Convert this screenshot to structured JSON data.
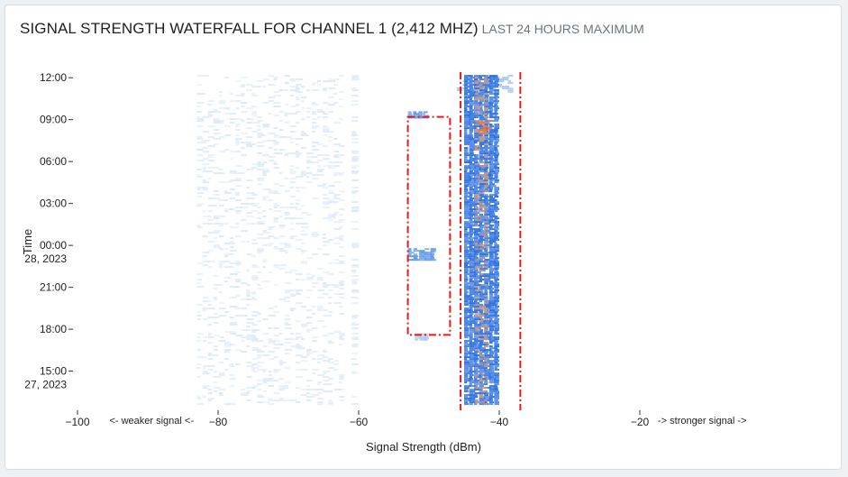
{
  "header": {
    "title": "SIGNAL STRENGTH WATERFALL FOR CHANNEL 1 (2,412 MHZ)",
    "subtitle": "LAST 24 HOURS MAXIMUM"
  },
  "chart_data": {
    "type": "heatmap",
    "title": "SIGNAL STRENGTH WATERFALL FOR CHANNEL 1 (2,412 MHZ)",
    "subtitle": "LAST 24 HOURS MAXIMUM",
    "xlabel": "Signal Strength (dBm)",
    "ylabel": "Time",
    "xlim": [
      -100,
      -20
    ],
    "x_ticks": [
      {
        "value": -100,
        "label": "−100"
      },
      {
        "value": -80,
        "label": "−80"
      },
      {
        "value": -60,
        "label": "−60"
      },
      {
        "value": -40,
        "label": "−40"
      },
      {
        "value": -20,
        "label": "−20"
      }
    ],
    "y_ticks": [
      {
        "hour": 36,
        "label": "12:00",
        "sublabel": ""
      },
      {
        "hour": 33,
        "label": "09:00",
        "sublabel": ""
      },
      {
        "hour": 30,
        "label": "06:00",
        "sublabel": ""
      },
      {
        "hour": 27,
        "label": "03:00",
        "sublabel": ""
      },
      {
        "hour": 24,
        "label": "00:00",
        "sublabel": "28, 2023"
      },
      {
        "hour": 21,
        "label": "21:00",
        "sublabel": ""
      },
      {
        "hour": 18,
        "label": "18:00",
        "sublabel": ""
      },
      {
        "hour": 15,
        "label": "15:00",
        "sublabel": "27, 2023"
      }
    ],
    "ylim_hours": [
      12.2,
      36.4
    ],
    "annotations": {
      "weaker": "<- weaker signal <-",
      "stronger": "-> stronger signal ->"
    },
    "colors": {
      "faint": "#dce8fa",
      "light": "#a9c7f2",
      "medium": "#5f97ec",
      "strong": "#2a6fe3",
      "peak": "#c79b82",
      "hot": "#f07a40",
      "marker": "#e31b1b"
    },
    "marker_lines_dbm": [
      -45.5,
      -37
    ],
    "highlight_region": {
      "x_dbm": [
        -53,
        -47
      ],
      "hours": [
        17.6,
        33.2
      ]
    },
    "bands": [
      {
        "dbm": [
          -83,
          -62
        ],
        "hours": [
          12.6,
          36.2
        ],
        "level": "faint",
        "density": 0.22
      },
      {
        "dbm": [
          -61,
          -60
        ],
        "hours": [
          12.6,
          36.2
        ],
        "level": "faint",
        "density": 0.35
      },
      {
        "dbm": [
          -46,
          -38
        ],
        "hours": [
          35.0,
          36.2
        ],
        "level": "light",
        "density": 0.55
      },
      {
        "dbm": [
          -45,
          -40
        ],
        "hours": [
          12.6,
          36.2
        ],
        "level": "strong",
        "density": 0.95
      },
      {
        "dbm": [
          -43.5,
          -41.5
        ],
        "hours": [
          12.6,
          36.2
        ],
        "level": "peak",
        "density": 0.28
      },
      {
        "dbm": [
          -43,
          -41
        ],
        "hours": [
          32.0,
          33.0
        ],
        "level": "hot",
        "density": 0.6
      },
      {
        "dbm": [
          -53,
          -50
        ],
        "hours": [
          33.1,
          33.6
        ],
        "level": "medium",
        "density": 0.8
      },
      {
        "dbm": [
          -53,
          -49
        ],
        "hours": [
          22.9,
          23.8
        ],
        "level": "medium",
        "density": 0.85
      },
      {
        "dbm": [
          -52,
          -50
        ],
        "hours": [
          17.3,
          17.7
        ],
        "level": "light",
        "density": 0.8
      }
    ]
  }
}
